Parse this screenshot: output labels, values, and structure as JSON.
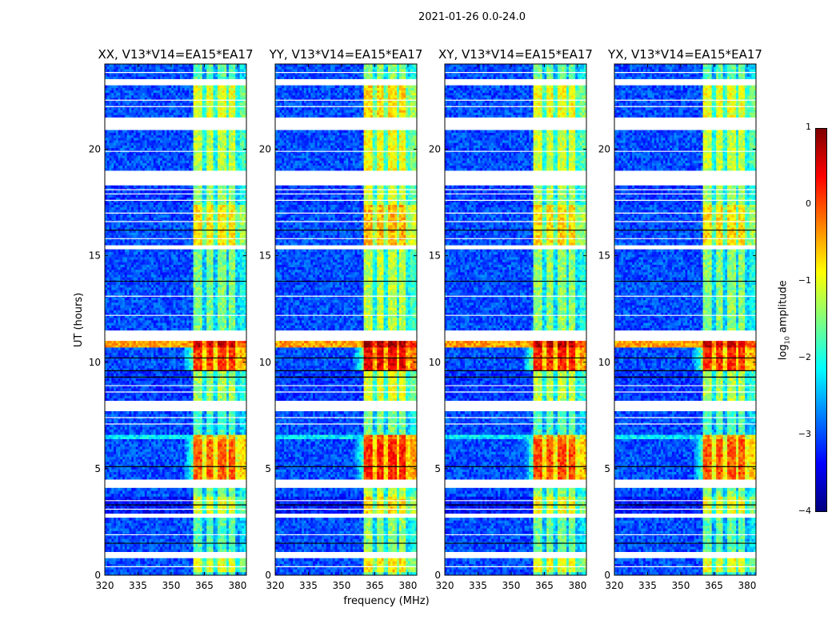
{
  "title": "2021-01-26 0.0-24.0",
  "chart_data": {
    "type": "heatmap",
    "title": "2021-01-26 0.0-24.0",
    "xlabel": "frequency (MHz)",
    "ylabel": "UT (hours)",
    "xlim": [
      320,
      384
    ],
    "ylim": [
      0,
      24
    ],
    "xticks": [
      320,
      335,
      350,
      365,
      380
    ],
    "yticks": [
      0,
      5,
      10,
      15,
      20
    ],
    "colormap": "jet",
    "clim": [
      -4,
      1
    ],
    "colorbar": {
      "label": "log10 amplitude",
      "label_main": "log",
      "label_sub": "10",
      "label_rest": " amplitude",
      "ticks": [
        "1",
        "0",
        "−1",
        "−2",
        "−3",
        "−4"
      ],
      "tick_values": [
        1,
        0,
        -1,
        -2,
        -3,
        -4
      ]
    },
    "band_edges_mhz": [
      360,
      384
    ],
    "band_gaps_mhz": [
      364.8,
      370.2,
      375.3,
      380.0
    ],
    "panels": [
      {
        "title": "XX, V13*V14=EA15*EA17",
        "band_offset": 0.0,
        "leak": 0.6
      },
      {
        "title": "YY, V13*V14=EA15*EA17",
        "band_offset": 0.3,
        "leak": 0.9
      },
      {
        "title": "XY, V13*V14=EA15*EA17",
        "band_offset": 0.1,
        "leak": 1.0
      },
      {
        "title": "YX, V13*V14=EA15*EA17",
        "band_offset": 0.05,
        "leak": 1.1
      }
    ],
    "time_segments": [
      {
        "t": [
          0.0,
          0.15
        ],
        "bg": -3.0,
        "band": -1.8
      },
      {
        "t": [
          0.15,
          0.8
        ],
        "bg": -3.0,
        "band": -1.0
      },
      {
        "t": [
          0.8,
          1.1
        ],
        "flagged": true
      },
      {
        "t": [
          1.1,
          2.7
        ],
        "bg": -3.0,
        "band": -1.7
      },
      {
        "t": [
          2.7,
          2.9
        ],
        "flagged": true
      },
      {
        "t": [
          2.9,
          3.7
        ],
        "bg": -3.3,
        "band": -1.0
      },
      {
        "t": [
          3.7,
          4.1
        ],
        "bg": -3.0,
        "band": -1.5
      },
      {
        "t": [
          4.1,
          4.5
        ],
        "flagged": true
      },
      {
        "t": [
          4.5,
          6.4
        ],
        "bg": -3.0,
        "band": -0.1
      },
      {
        "t": [
          6.4,
          6.6
        ],
        "bg": -2.2,
        "band": -0.4
      },
      {
        "t": [
          6.6,
          7.7
        ],
        "bg": -3.0,
        "band": -1.8
      },
      {
        "t": [
          7.7,
          8.2
        ],
        "flagged": true
      },
      {
        "t": [
          8.2,
          9.6
        ],
        "bg": -3.1,
        "band": -1.3
      },
      {
        "t": [
          9.6,
          10.7
        ],
        "bg": -3.0,
        "band": 0.1
      },
      {
        "t": [
          10.7,
          11.0
        ],
        "bg": -0.4,
        "band": 0.6
      },
      {
        "t": [
          11.0,
          11.5
        ],
        "flagged": true
      },
      {
        "t": [
          11.5,
          15.3
        ],
        "bg": -3.0,
        "band": -1.5
      },
      {
        "t": [
          15.3,
          15.5
        ],
        "flagged": true
      },
      {
        "t": [
          15.5,
          17.4
        ],
        "bg": -3.0,
        "band": -0.8
      },
      {
        "t": [
          17.4,
          18.3
        ],
        "bg": -3.1,
        "band": -1.4
      },
      {
        "t": [
          18.3,
          19.0
        ],
        "flagged": true
      },
      {
        "t": [
          19.0,
          20.9
        ],
        "bg": -3.0,
        "band": -1.2
      },
      {
        "t": [
          20.9,
          21.5
        ],
        "flagged": true
      },
      {
        "t": [
          21.5,
          23.0
        ],
        "bg": -3.0,
        "band": -1.0
      },
      {
        "t": [
          23.0,
          23.3
        ],
        "flagged": true
      },
      {
        "t": [
          23.3,
          24.0
        ],
        "bg": -3.0,
        "band": -1.7
      }
    ],
    "flag_lines_hours": [
      0.4,
      1.5,
      1.9,
      3.1,
      3.3,
      3.5,
      5.1,
      7.1,
      7.4,
      8.6,
      8.9,
      9.3,
      9.6,
      10.2,
      12.2,
      13.1,
      13.8,
      15.8,
      16.2,
      16.6,
      17.0,
      17.6,
      17.9,
      18.1,
      19.9,
      22.0,
      22.3,
      23.6
    ]
  }
}
